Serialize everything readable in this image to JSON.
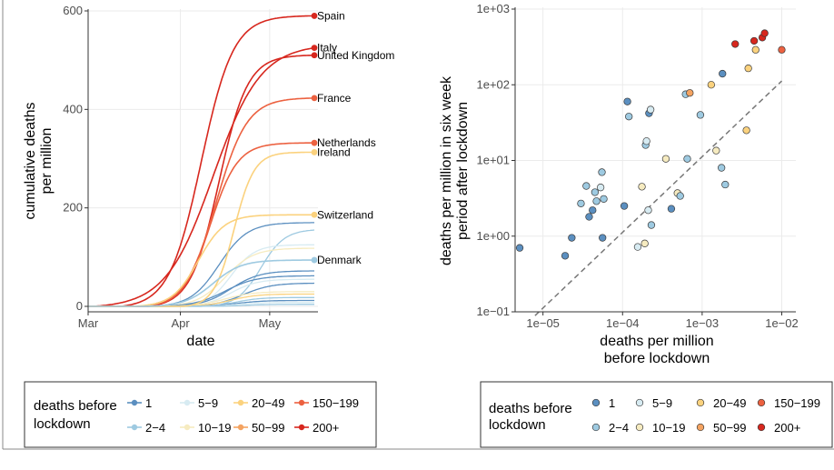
{
  "colors": {
    "1": "#5b8fc0",
    "2-4": "#9ecae1",
    "5-9": "#d7ebf2",
    "10-19": "#f6ebc0",
    "20-49": "#fbd27e",
    "50-99": "#f4a361",
    "150-199": "#ec6140",
    "200+": "#d7271e"
  },
  "legend": {
    "title_line1": "deaths before",
    "title_line2": "lockdown",
    "entries": [
      {
        "label": "1",
        "key": "1"
      },
      {
        "label": "5−9",
        "key": "5-9"
      },
      {
        "label": "20−49",
        "key": "20-49"
      },
      {
        "label": "150−199",
        "key": "150-199"
      },
      {
        "label": "2−4",
        "key": "2-4"
      },
      {
        "label": "10−19",
        "key": "10-19"
      },
      {
        "label": "50−99",
        "key": "50-99"
      },
      {
        "label": "200+",
        "key": "200+"
      }
    ]
  },
  "chart_data": [
    {
      "type": "line",
      "xlabel": "date",
      "ylabel_line1": "cumulative deaths",
      "ylabel_line2": "per million",
      "ylim": [
        0,
        600
      ],
      "yticks": [
        0,
        200,
        400,
        600
      ],
      "xlim_days": [
        0,
        76
      ],
      "xticks": [
        {
          "label": "Mar",
          "day": 0
        },
        {
          "label": "Apr",
          "day": 31
        },
        {
          "label": "May",
          "day": 61
        }
      ],
      "grid": true,
      "series": [
        {
          "name": "Spain",
          "group": "200+",
          "final": 590,
          "start": 11,
          "width": 27
        },
        {
          "name": "Italy",
          "group": "200+",
          "final": 525,
          "start": 2,
          "width": 40
        },
        {
          "name": "United Kingdom",
          "group": "200+",
          "final": 510,
          "start": 20,
          "width": 24
        },
        {
          "name": "France",
          "group": "150-199",
          "final": 423,
          "start": 17,
          "width": 26
        },
        {
          "name": "Netherlands",
          "group": "150-199",
          "final": 332,
          "start": 18,
          "width": 23
        },
        {
          "name": "Ireland",
          "group": "20-49",
          "final": 313,
          "start": 32,
          "width": 17
        },
        {
          "name": "Switzerland",
          "group": "20-49",
          "final": 186,
          "start": 15,
          "width": 22
        },
        {
          "name": "Denmark",
          "group": "2-4",
          "final": 94,
          "start": 18,
          "width": 24
        },
        {
          "group": "1",
          "final": 170,
          "start": 20,
          "width": 24
        },
        {
          "group": "2-4",
          "final": 155,
          "start": 38,
          "width": 20
        },
        {
          "group": "5-9",
          "final": 125,
          "start": 28,
          "width": 20
        },
        {
          "group": "10-19",
          "final": 118,
          "start": 22,
          "width": 24
        },
        {
          "group": "1",
          "final": 72,
          "start": 24,
          "width": 24
        },
        {
          "group": "1",
          "final": 62,
          "start": 20,
          "width": 26
        },
        {
          "group": "1",
          "final": 47,
          "start": 28,
          "width": 24
        },
        {
          "group": "5-9",
          "final": 55,
          "start": 26,
          "width": 22
        },
        {
          "group": "10-19",
          "final": 30,
          "start": 22,
          "width": 24
        },
        {
          "group": "20-49",
          "final": 25,
          "start": 26,
          "width": 22
        },
        {
          "group": "2-4",
          "final": 18,
          "start": 30,
          "width": 20
        },
        {
          "group": "1",
          "final": 12,
          "start": 28,
          "width": 22
        },
        {
          "group": "5-9",
          "final": 8,
          "start": 30,
          "width": 20
        },
        {
          "group": "2-4",
          "final": 4,
          "start": 32,
          "width": 20
        }
      ]
    },
    {
      "type": "scatter",
      "xlabel_line1": "deaths per million",
      "xlabel_line2": "before lockdown",
      "ylabel_line1": "deaths per million in six week",
      "ylabel_line2": "period after lockdown",
      "x_log10_range": [
        -5.35,
        -1.8
      ],
      "y_log10_range": [
        -1,
        3
      ],
      "xticks": [
        {
          "label": "1e−05",
          "exp": -5
        },
        {
          "label": "1e−04",
          "exp": -4
        },
        {
          "label": "1e−03",
          "exp": -3
        },
        {
          "label": "1e−02",
          "exp": -2
        }
      ],
      "yticks": [
        {
          "label": "1e−01",
          "exp": -1
        },
        {
          "label": "1e+00",
          "exp": 0
        },
        {
          "label": "1e+01",
          "exp": 1
        },
        {
          "label": "1e+02",
          "exp": 2
        },
        {
          "label": "1e+03",
          "exp": 3
        }
      ],
      "reference_line": {
        "slope": 1,
        "intercept_log10": 4.05,
        "style": "dashed"
      },
      "grid": true,
      "points": [
        {
          "x": 5.1e-06,
          "y": 0.7,
          "g": "1"
        },
        {
          "x": 1.9e-05,
          "y": 0.55,
          "g": "1"
        },
        {
          "x": 2.3e-05,
          "y": 0.95,
          "g": "1"
        },
        {
          "x": 3e-05,
          "y": 2.7,
          "g": "2-4"
        },
        {
          "x": 3.8e-05,
          "y": 1.8,
          "g": "1"
        },
        {
          "x": 4.2e-05,
          "y": 2.2,
          "g": "1"
        },
        {
          "x": 4.5e-05,
          "y": 3.8,
          "g": "2-4"
        },
        {
          "x": 3.5e-05,
          "y": 4.6,
          "g": "2-4"
        },
        {
          "x": 4.7e-05,
          "y": 2.9,
          "g": "2-4"
        },
        {
          "x": 5.3e-05,
          "y": 4.4,
          "g": "5-9"
        },
        {
          "x": 5.5e-05,
          "y": 7.0,
          "g": "2-4"
        },
        {
          "x": 5.8e-05,
          "y": 3.1,
          "g": "2-4"
        },
        {
          "x": 5.6e-05,
          "y": 0.95,
          "g": "1"
        },
        {
          "x": 0.000105,
          "y": 2.5,
          "g": "1"
        },
        {
          "x": 0.000115,
          "y": 60,
          "g": "1"
        },
        {
          "x": 0.00012,
          "y": 38,
          "g": "2-4"
        },
        {
          "x": 0.000155,
          "y": 0.72,
          "g": "5-9"
        },
        {
          "x": 0.000175,
          "y": 4.5,
          "g": "10-19"
        },
        {
          "x": 0.00019,
          "y": 0.8,
          "g": "10-19"
        },
        {
          "x": 0.000195,
          "y": 16,
          "g": "2-4"
        },
        {
          "x": 0.0002,
          "y": 18,
          "g": "5-9"
        },
        {
          "x": 0.00021,
          "y": 2.2,
          "g": "5-9"
        },
        {
          "x": 0.000215,
          "y": 42,
          "g": "1"
        },
        {
          "x": 0.000225,
          "y": 47,
          "g": "5-9"
        },
        {
          "x": 0.00023,
          "y": 1.4,
          "g": "2-4"
        },
        {
          "x": 0.00035,
          "y": 10.5,
          "g": "10-19"
        },
        {
          "x": 0.00041,
          "y": 2.3,
          "g": "1"
        },
        {
          "x": 0.00049,
          "y": 3.7,
          "g": "10-19"
        },
        {
          "x": 0.00053,
          "y": 3.4,
          "g": "2-4"
        },
        {
          "x": 0.00062,
          "y": 75,
          "g": "2-4"
        },
        {
          "x": 0.00065,
          "y": 10.5,
          "g": "2-4"
        },
        {
          "x": 0.0007,
          "y": 78,
          "g": "50-99"
        },
        {
          "x": 0.00095,
          "y": 40,
          "g": "2-4"
        },
        {
          "x": 0.0013,
          "y": 100,
          "g": "20-49"
        },
        {
          "x": 0.0015,
          "y": 13.5,
          "g": "10-19"
        },
        {
          "x": 0.0018,
          "y": 140,
          "g": "1"
        },
        {
          "x": 0.00175,
          "y": 8,
          "g": "2-4"
        },
        {
          "x": 0.00195,
          "y": 4.8,
          "g": "2-4"
        },
        {
          "x": 0.0026,
          "y": 345,
          "g": "200+"
        },
        {
          "x": 0.0036,
          "y": 25,
          "g": "20-49"
        },
        {
          "x": 0.0038,
          "y": 165,
          "g": "20-49"
        },
        {
          "x": 0.0045,
          "y": 380,
          "g": "200+"
        },
        {
          "x": 0.0047,
          "y": 290,
          "g": "20-49"
        },
        {
          "x": 0.0057,
          "y": 420,
          "g": "200+"
        },
        {
          "x": 0.0061,
          "y": 480,
          "g": "200+"
        },
        {
          "x": 0.01,
          "y": 290,
          "g": "150-199"
        }
      ]
    }
  ]
}
